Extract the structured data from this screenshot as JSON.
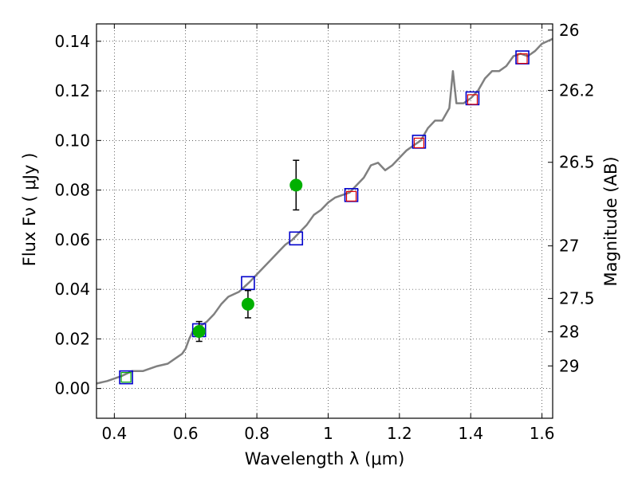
{
  "chart_data": {
    "type": "scatter",
    "title": "",
    "xlabel": "Wavelength  λ (μm)",
    "ylabel": "Flux  Fν  ( μJy )",
    "ylabel_right": "Magnitude (AB)",
    "xlim": [
      0.35,
      1.63
    ],
    "ylim": [
      -0.012,
      0.147
    ],
    "grid": true,
    "x_ticks": [
      {
        "value": 0.4,
        "label": "0.4"
      },
      {
        "value": 0.6,
        "label": "0.6"
      },
      {
        "value": 0.8,
        "label": "0.8"
      },
      {
        "value": 1.0,
        "label": "1"
      },
      {
        "value": 1.2,
        "label": "1.2"
      },
      {
        "value": 1.4,
        "label": "1.4"
      },
      {
        "value": 1.6,
        "label": "1.6"
      }
    ],
    "y_ticks": [
      {
        "value": 0.0,
        "label": "0.00"
      },
      {
        "value": 0.02,
        "label": "0.02"
      },
      {
        "value": 0.04,
        "label": "0.04"
      },
      {
        "value": 0.06,
        "label": "0.06"
      },
      {
        "value": 0.08,
        "label": "0.08"
      },
      {
        "value": 0.1,
        "label": "0.10"
      },
      {
        "value": 0.12,
        "label": "0.12"
      },
      {
        "value": 0.14,
        "label": "0.14"
      }
    ],
    "right_ticks": [
      {
        "label": "26",
        "flux": 0.1445
      },
      {
        "label": "26.2",
        "flux": 0.1202
      },
      {
        "label": "26.5",
        "flux": 0.0912
      },
      {
        "label": "27",
        "flux": 0.0575
      },
      {
        "label": "27.5",
        "flux": 0.0363
      },
      {
        "label": "28",
        "flux": 0.0229
      },
      {
        "label": "29",
        "flux": 0.0091
      }
    ],
    "series": [
      {
        "kind": "spectrum",
        "color": "#808080",
        "points": [
          [
            0.35,
            0.002
          ],
          [
            0.38,
            0.003
          ],
          [
            0.4,
            0.004
          ],
          [
            0.42,
            0.005
          ],
          [
            0.45,
            0.007
          ],
          [
            0.48,
            0.007
          ],
          [
            0.5,
            0.008
          ],
          [
            0.52,
            0.009
          ],
          [
            0.55,
            0.01
          ],
          [
            0.57,
            0.012
          ],
          [
            0.59,
            0.014
          ],
          [
            0.6,
            0.016
          ],
          [
            0.61,
            0.02
          ],
          [
            0.62,
            0.023
          ],
          [
            0.64,
            0.025
          ],
          [
            0.66,
            0.027
          ],
          [
            0.68,
            0.03
          ],
          [
            0.7,
            0.034
          ],
          [
            0.72,
            0.037
          ],
          [
            0.75,
            0.039
          ],
          [
            0.78,
            0.043
          ],
          [
            0.8,
            0.046
          ],
          [
            0.82,
            0.049
          ],
          [
            0.84,
            0.052
          ],
          [
            0.86,
            0.055
          ],
          [
            0.88,
            0.058
          ],
          [
            0.9,
            0.06
          ],
          [
            0.92,
            0.063
          ],
          [
            0.94,
            0.066
          ],
          [
            0.96,
            0.07
          ],
          [
            0.98,
            0.072
          ],
          [
            1.0,
            0.075
          ],
          [
            1.02,
            0.077
          ],
          [
            1.04,
            0.078
          ],
          [
            1.06,
            0.079
          ],
          [
            1.08,
            0.082
          ],
          [
            1.1,
            0.085
          ],
          [
            1.12,
            0.09
          ],
          [
            1.14,
            0.091
          ],
          [
            1.16,
            0.088
          ],
          [
            1.18,
            0.09
          ],
          [
            1.2,
            0.093
          ],
          [
            1.22,
            0.096
          ],
          [
            1.24,
            0.098
          ],
          [
            1.26,
            0.1
          ],
          [
            1.28,
            0.105
          ],
          [
            1.3,
            0.108
          ],
          [
            1.32,
            0.108
          ],
          [
            1.34,
            0.113
          ],
          [
            1.35,
            0.128
          ],
          [
            1.36,
            0.115
          ],
          [
            1.38,
            0.115
          ],
          [
            1.4,
            0.117
          ],
          [
            1.42,
            0.12
          ],
          [
            1.44,
            0.125
          ],
          [
            1.46,
            0.128
          ],
          [
            1.48,
            0.128
          ],
          [
            1.5,
            0.13
          ],
          [
            1.52,
            0.134
          ],
          [
            1.54,
            0.135
          ],
          [
            1.56,
            0.134
          ],
          [
            1.58,
            0.136
          ],
          [
            1.6,
            0.139
          ],
          [
            1.63,
            0.141
          ]
        ]
      },
      {
        "kind": "model-squares",
        "color": "#0000cc",
        "points": [
          [
            0.433,
            0.0045
          ],
          [
            0.638,
            0.0235
          ],
          [
            0.775,
            0.0425
          ],
          [
            0.91,
            0.0605
          ],
          [
            1.065,
            0.078
          ],
          [
            1.255,
            0.0995
          ],
          [
            1.405,
            0.117
          ],
          [
            1.545,
            0.1335
          ]
        ]
      },
      {
        "kind": "inner-squares",
        "color": "#dd0000",
        "points": [
          [
            1.065,
            0.0775
          ],
          [
            1.255,
            0.099
          ],
          [
            1.405,
            0.1165
          ],
          [
            1.545,
            0.133
          ]
        ]
      },
      {
        "kind": "inner-squares",
        "color": "#00aa00",
        "points": [
          [
            0.433,
            0.0045
          ]
        ]
      },
      {
        "kind": "observed",
        "color": "#00b000",
        "points": [
          {
            "x": 0.638,
            "y": 0.023,
            "err": 0.004
          },
          {
            "x": 0.775,
            "y": 0.034,
            "err": 0.0055
          },
          {
            "x": 0.91,
            "y": 0.082,
            "err": 0.01
          }
        ]
      }
    ]
  }
}
